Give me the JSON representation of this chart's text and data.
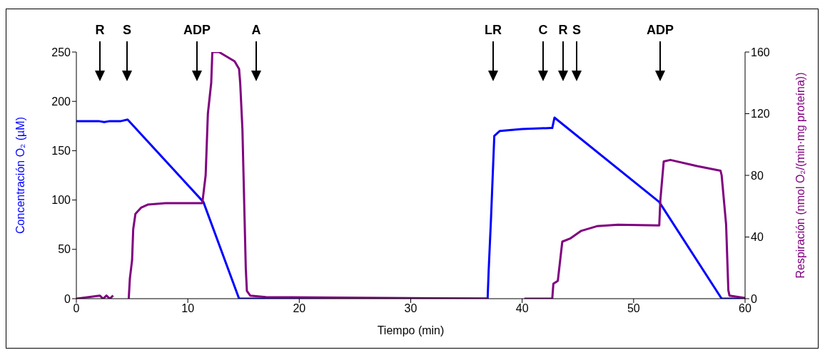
{
  "chart_data": {
    "type": "line",
    "xlabel": "Tiempo (min)",
    "ylabel": "Concentración O₂ (µM)",
    "y2label": "Respiración (nmol O₂/(min·mg proteína))",
    "xlim": [
      0,
      60
    ],
    "xticks": [
      0,
      10,
      20,
      30,
      40,
      50,
      60
    ],
    "ylim": [
      0,
      250
    ],
    "yticks": [
      0,
      50,
      100,
      150,
      200,
      250
    ],
    "y2lim": [
      0,
      160
    ],
    "y2ticks": [
      0,
      40,
      80,
      120,
      160
    ],
    "grid": false,
    "legend": false,
    "marker": "none",
    "line_style": "solid",
    "series": [
      {
        "color": "#0000ff",
        "x": [
          0,
          2,
          2.5,
          3,
          4,
          4.6,
          11.4,
          14.6,
          36.9,
          37.0,
          37.2,
          37.5,
          38,
          40,
          42.6,
          42.7,
          42.9,
          52.3,
          57.9,
          60
        ],
        "values": [
          180,
          180,
          179,
          180,
          180,
          181.5,
          98,
          0,
          0,
          30,
          80,
          165,
          170,
          172,
          173,
          173,
          183.5,
          98,
          0,
          0
        ]
      },
      {
        "color": "#800080",
        "axis": "y2",
        "x": [
          0,
          2.1,
          2.4,
          2.7,
          3.0,
          3.3,
          3.4,
          4.7,
          4.8,
          5.0,
          5.1,
          5.3,
          5.8,
          6.4,
          8,
          11.3,
          11.6,
          11.8,
          12.1,
          12.2,
          12.8,
          13.5,
          14.2,
          14.6,
          14.7,
          14.9,
          15.0,
          15.1,
          15.2,
          15.3,
          15.6,
          17,
          37,
          37.1,
          40.2,
          42.7,
          42.8,
          43.2,
          43.6,
          44.3,
          45.3,
          46.7,
          48.6,
          52.3,
          52.4,
          52.7,
          53.3,
          55.7,
          57.8,
          57.9,
          58.3,
          58.5,
          58.6,
          60
        ],
        "values": [
          0,
          2,
          0,
          2,
          0,
          2,
          null,
          0,
          13,
          25,
          45,
          55,
          59,
          61,
          62,
          62,
          80,
          120,
          140,
          160,
          160,
          157,
          154,
          149,
          140,
          110,
          80,
          50,
          20,
          5,
          2,
          1,
          0,
          null,
          0,
          0,
          9.7,
          11.6,
          37,
          39,
          44,
          47,
          48,
          47.5,
          64,
          89,
          90,
          86,
          83,
          80,
          48,
          5.5,
          2,
          0.5
        ]
      }
    ],
    "annotations": [
      "R",
      "S",
      "ADP",
      "A",
      "LR",
      "C",
      "R",
      "S",
      "ADP"
    ]
  }
}
